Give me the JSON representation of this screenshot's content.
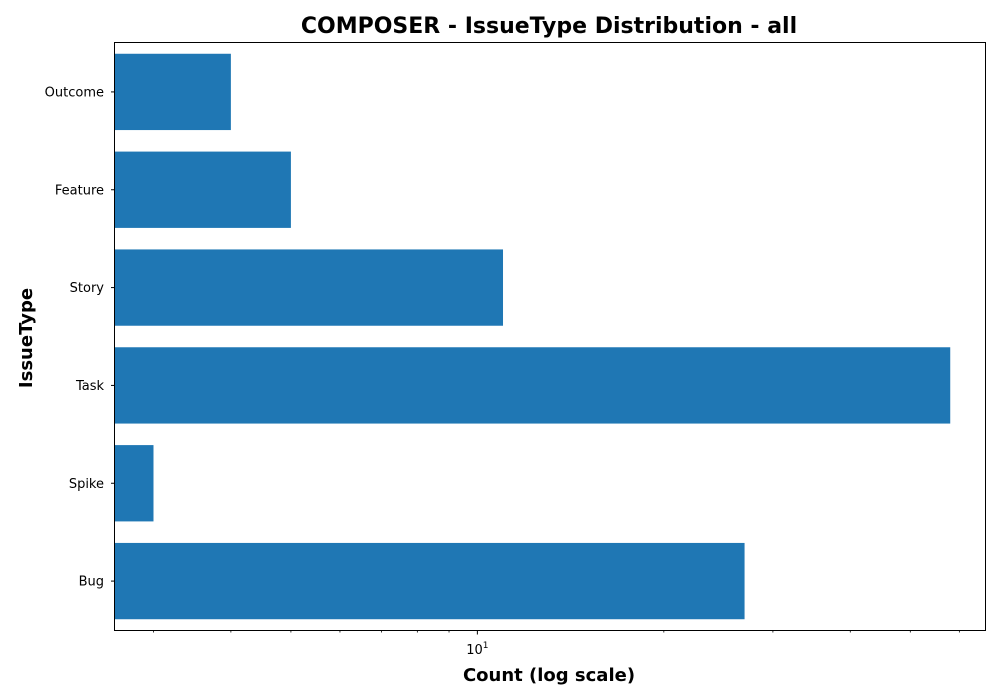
{
  "chart_data": {
    "type": "bar",
    "orientation": "horizontal",
    "title": "COMPOSER - IssueType Distribution - all",
    "xlabel": "Count (log scale)",
    "ylabel": "IssueType",
    "x_scale": "log",
    "xlim": [
      2.6,
      66
    ],
    "x_tick_label": {
      "base": "10",
      "exponent": "1",
      "value": 10
    },
    "grid": false,
    "bar_color": "#1f77b4",
    "categories": [
      "Bug",
      "Spike",
      "Task",
      "Story",
      "Feature",
      "Outcome"
    ],
    "values": [
      27,
      3,
      58,
      11,
      5,
      4
    ]
  }
}
